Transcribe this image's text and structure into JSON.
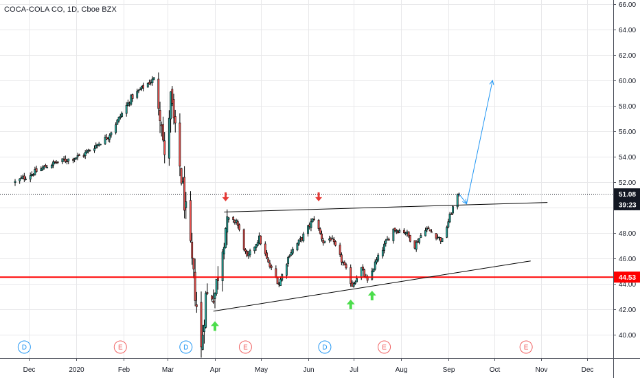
{
  "header": {
    "symbol_title": "COCA-COLA CO, 1D, Cboe BZX"
  },
  "colors": {
    "up": "#26a69a",
    "down": "#ef5350",
    "candle_border": "#000000",
    "support_line": "#ff0000",
    "pattern_line": "#000000",
    "projection": "#2196f3",
    "arrow_down": "#e53935",
    "arrow_up": "#4cdd4c",
    "dividend": "#2196f3",
    "earnings": "#f06262",
    "axis_text": "#131722",
    "grid": "#e8e8ea"
  },
  "chart_data": {
    "type": "candlestick",
    "title": "COCA-COLA CO, 1D, Cboe BZX",
    "ylim": [
      38.5,
      66
    ],
    "y_ticks": [
      "40.00",
      "42.00",
      "44.00",
      "46.00",
      "48.00",
      "50.00",
      "52.00",
      "54.00",
      "56.00",
      "58.00",
      "60.00",
      "62.00",
      "64.00",
      "66.00"
    ],
    "x_ticks": [
      "Dec",
      "2020",
      "Feb",
      "Mar",
      "Apr",
      "May",
      "Jun",
      "Jul",
      "Aug",
      "Sep",
      "Oct",
      "Nov",
      "Dec"
    ],
    "price_badges": [
      {
        "label": "51.08",
        "value": 51.08,
        "kind": "last"
      },
      {
        "label": "39:23",
        "value": 50.22,
        "kind": "countdown"
      },
      {
        "label": "44.53",
        "value": 44.53,
        "kind": "support"
      }
    ],
    "support_level": 44.53,
    "last_price": 51.08,
    "anchors": [
      [
        "2019-11-22",
        52.0
      ],
      [
        "2019-12-15",
        53.4
      ],
      [
        "2020-01-05",
        54.1
      ],
      [
        "2020-01-22",
        55.6
      ],
      [
        "2020-01-30",
        57.2
      ],
      [
        "2020-02-06",
        58.6
      ],
      [
        "2020-02-15",
        59.6
      ],
      [
        "2020-02-21",
        60.1
      ],
      [
        "2020-02-26",
        57.0
      ],
      [
        "2020-02-28",
        53.6
      ],
      [
        "2020-03-03",
        58.6
      ],
      [
        "2020-03-06",
        55.8
      ],
      [
        "2020-03-09",
        53.2
      ],
      [
        "2020-03-13",
        49.6
      ],
      [
        "2020-03-17",
        45.5
      ],
      [
        "2020-03-20",
        42.3
      ],
      [
        "2020-03-23",
        38.8
      ],
      [
        "2020-03-26",
        43.0
      ],
      [
        "2020-04-01",
        43.3
      ],
      [
        "2020-04-08",
        48.5
      ],
      [
        "2020-04-15",
        49.0
      ],
      [
        "2020-04-22",
        46.0
      ],
      [
        "2020-04-30",
        47.6
      ],
      [
        "2020-05-06",
        45.6
      ],
      [
        "2020-05-13",
        44.0
      ],
      [
        "2020-05-20",
        46.4
      ],
      [
        "2020-05-28",
        47.6
      ],
      [
        "2020-06-05",
        49.2
      ],
      [
        "2020-06-11",
        47.3
      ],
      [
        "2020-06-16",
        47.6
      ],
      [
        "2020-06-24",
        45.6
      ],
      [
        "2020-06-30",
        43.9
      ],
      [
        "2020-07-06",
        45.2
      ],
      [
        "2020-07-10",
        44.1
      ],
      [
        "2020-07-15",
        45.6
      ],
      [
        "2020-07-21",
        47.0
      ],
      [
        "2020-07-27",
        48.3
      ],
      [
        "2020-08-04",
        48.1
      ],
      [
        "2020-08-10",
        47.0
      ],
      [
        "2020-08-17",
        48.4
      ],
      [
        "2020-08-24",
        47.8
      ],
      [
        "2020-08-28",
        47.4
      ],
      [
        "2020-09-02",
        49.3
      ],
      [
        "2020-09-04",
        50.0
      ],
      [
        "2020-09-08",
        51.08
      ]
    ],
    "trendlines": [
      {
        "name": "resistance",
        "from": [
          "2020-04-07",
          49.65
        ],
        "to": [
          "2020-11-05",
          50.4
        ]
      },
      {
        "name": "rising-support",
        "from": [
          "2020-03-31",
          41.85
        ],
        "to": [
          "2020-10-25",
          45.8
        ]
      }
    ],
    "projection": {
      "from": [
        "2020-09-08",
        51.08
      ],
      "mid": [
        "2020-09-13",
        50.3
      ],
      "to": [
        "2020-09-30",
        60.0
      ]
    },
    "signals": [
      {
        "type": "down",
        "date": "2020-04-08",
        "price": 50.6
      },
      {
        "type": "down",
        "date": "2020-06-08",
        "price": 50.6
      },
      {
        "type": "up",
        "date": "2020-04-01",
        "price": 40.9
      },
      {
        "type": "up",
        "date": "2020-06-29",
        "price": 42.6
      },
      {
        "type": "up",
        "date": "2020-07-13",
        "price": 43.3
      }
    ],
    "events": [
      {
        "type": "dividend",
        "letter": "D",
        "date": "2019-11-28"
      },
      {
        "type": "earnings",
        "letter": "E",
        "date": "2020-01-30"
      },
      {
        "type": "dividend",
        "letter": "D",
        "date": "2020-03-13"
      },
      {
        "type": "earnings",
        "letter": "E",
        "date": "2020-04-21"
      },
      {
        "type": "dividend",
        "letter": "D",
        "date": "2020-06-12"
      },
      {
        "type": "earnings",
        "letter": "E",
        "date": "2020-07-21"
      },
      {
        "type": "earnings",
        "letter": "E",
        "date": "2020-10-22"
      }
    ]
  }
}
